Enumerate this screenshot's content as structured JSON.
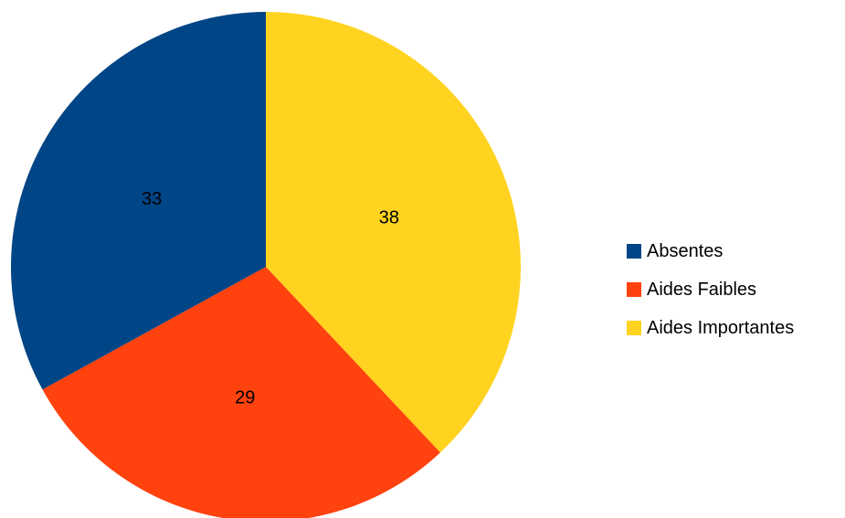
{
  "chart_data": {
    "type": "pie",
    "categories": [
      "Absentes",
      "Aides Faibles",
      "Aides Importantes"
    ],
    "values": [
      33,
      29,
      38
    ],
    "colors": [
      "#004586",
      "#ff420e",
      "#ffd320"
    ],
    "title": "",
    "legend": "right",
    "data_labels": [
      "33",
      "29",
      "38"
    ]
  }
}
